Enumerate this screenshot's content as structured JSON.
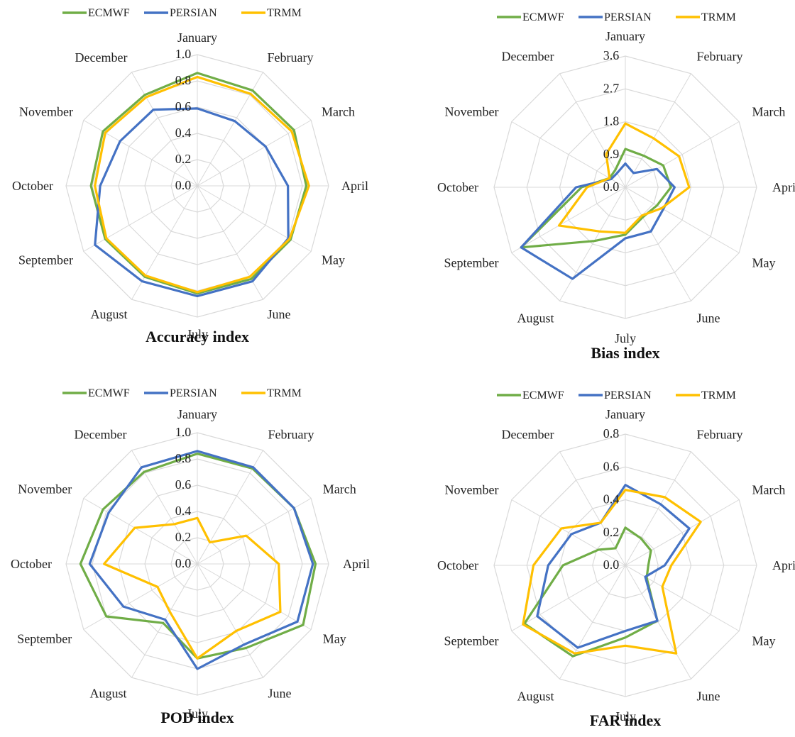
{
  "colors": {
    "ECMWF": "#70ad47",
    "PERSIAN": "#4472c4",
    "TRMM": "#ffc000",
    "grid": "#d9d9d9"
  },
  "chart_data": [
    {
      "type": "radar",
      "title": "Accuracy index",
      "categories": [
        "January",
        "February",
        "March",
        "April",
        "May",
        "June",
        "July",
        "August",
        "September",
        "October",
        "November",
        "December"
      ],
      "ticks": [
        "0.0",
        "0.2",
        "0.4",
        "0.6",
        "0.8",
        "1.0"
      ],
      "rmin": 0,
      "rmax": 1.0,
      "legend": "top",
      "series": [
        {
          "name": "ECMWF",
          "values": [
            0.86,
            0.84,
            0.85,
            0.83,
            0.82,
            0.82,
            0.82,
            0.8,
            0.81,
            0.81,
            0.83,
            0.8
          ]
        },
        {
          "name": "PERSIAN",
          "values": [
            0.59,
            0.57,
            0.6,
            0.69,
            0.8,
            0.84,
            0.84,
            0.84,
            0.9,
            0.74,
            0.68,
            0.67
          ]
        },
        {
          "name": "TRMM",
          "values": [
            0.83,
            0.81,
            0.83,
            0.85,
            0.81,
            0.8,
            0.81,
            0.79,
            0.8,
            0.78,
            0.81,
            0.78
          ]
        }
      ]
    },
    {
      "type": "radar",
      "title": "Bias index",
      "categories": [
        "January",
        "February",
        "March",
        "April",
        "May",
        "June",
        "July",
        "August",
        "September",
        "October",
        "November",
        "December"
      ],
      "ticks": [
        "0.0",
        "0.9",
        "1.8",
        "2.7",
        "3.6"
      ],
      "rmin": 0,
      "rmax": 3.6,
      "legend": "top",
      "series": [
        {
          "name": "ECMWF",
          "values": [
            1.05,
            1.0,
            1.2,
            1.25,
            1.0,
            0.95,
            1.3,
            1.7,
            3.3,
            1.2,
            0.5,
            0.55
          ]
        },
        {
          "name": "PERSIAN",
          "values": [
            0.65,
            0.45,
            1.0,
            1.35,
            1.2,
            1.4,
            1.4,
            2.9,
            3.3,
            1.35,
            0.45,
            0.45
          ]
        },
        {
          "name": "TRMM",
          "values": [
            1.75,
            1.55,
            1.7,
            1.75,
            1.15,
            0.9,
            1.25,
            1.4,
            2.1,
            1.05,
            0.5,
            1.05
          ]
        }
      ]
    },
    {
      "type": "radar",
      "title": "POD index",
      "categories": [
        "January",
        "February",
        "March",
        "April",
        "May",
        "June",
        "July",
        "August",
        "September",
        "October",
        "November",
        "December"
      ],
      "ticks": [
        "0.0",
        "0.2",
        "0.4",
        "0.6",
        "0.8",
        "1.0"
      ],
      "rmin": 0,
      "rmax": 1.0,
      "legend": "top",
      "series": [
        {
          "name": "ECMWF",
          "values": [
            0.84,
            0.84,
            0.85,
            0.9,
            0.93,
            0.74,
            0.72,
            0.52,
            0.8,
            0.89,
            0.83,
            0.81
          ]
        },
        {
          "name": "PERSIAN",
          "values": [
            0.86,
            0.85,
            0.85,
            0.88,
            0.88,
            0.71,
            0.8,
            0.49,
            0.65,
            0.82,
            0.78,
            0.85
          ]
        },
        {
          "name": "TRMM",
          "values": [
            0.35,
            0.19,
            0.43,
            0.62,
            0.73,
            0.59,
            0.72,
            0.42,
            0.35,
            0.71,
            0.55,
            0.35
          ]
        }
      ]
    },
    {
      "type": "radar",
      "title": "FAR index",
      "categories": [
        "January",
        "February",
        "March",
        "April",
        "May",
        "June",
        "July",
        "August",
        "September",
        "October",
        "November",
        "December"
      ],
      "ticks": [
        "0.0",
        "0.2",
        "0.4",
        "0.6",
        "0.8"
      ],
      "rmin": 0,
      "rmax": 0.8,
      "legend": "top",
      "series": [
        {
          "name": "ECMWF",
          "values": [
            0.23,
            0.19,
            0.18,
            0.14,
            0.15,
            0.39,
            0.44,
            0.64,
            0.71,
            0.38,
            0.19,
            0.12
          ]
        },
        {
          "name": "PERSIAN",
          "values": [
            0.49,
            0.43,
            0.45,
            0.24,
            0.14,
            0.39,
            0.4,
            0.58,
            0.62,
            0.47,
            0.38,
            0.3
          ]
        },
        {
          "name": "TRMM",
          "values": [
            0.46,
            0.48,
            0.53,
            0.28,
            0.26,
            0.62,
            0.49,
            0.62,
            0.72,
            0.56,
            0.45,
            0.3
          ]
        }
      ]
    }
  ]
}
